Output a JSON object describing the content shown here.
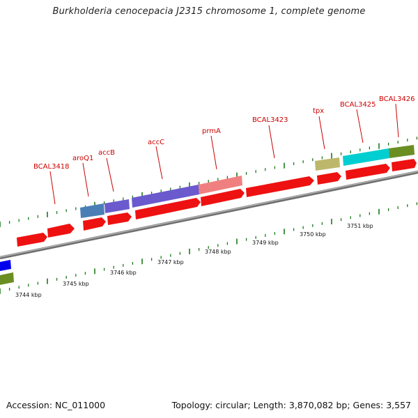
{
  "title": "Burkholderia cenocepacia J2315 chromosome 1, complete genome",
  "footer": {
    "accession": "Accession: NC_011000",
    "summary": "Topology: circular; Length: 3,870,082 bp; Genes: 3,557"
  },
  "colors": {
    "cds": "#ee1111",
    "backbone": "#8a8a8a",
    "ticks": "#1a7a1a",
    "label": "#cc0000"
  },
  "scale": {
    "unit": "kbp",
    "labels": [
      "3744 kbp",
      "3745 kbp",
      "3746 kbp",
      "3747 kbp",
      "3748 kbp",
      "3749 kbp",
      "3750 kbp",
      "3751 kbp"
    ]
  },
  "gene_labels": [
    "BCAL3418",
    "aroQ1",
    "accB",
    "accC",
    "prmA",
    "BCAL3423",
    "tpx",
    "BCAL3425",
    "BCAL3426"
  ],
  "features": [
    {
      "type": "gene",
      "color": "#0000ee"
    },
    {
      "type": "gene",
      "color": "#6b8e23"
    },
    {
      "type": "gene",
      "color": "#4a7fb5",
      "label": "aroQ1"
    },
    {
      "type": "gene",
      "color": "#6a5acd",
      "label": "accB"
    },
    {
      "type": "gene",
      "color": "#6a5acd",
      "label": "accC"
    },
    {
      "type": "gene",
      "color": "#f08080",
      "label": "prmA"
    },
    {
      "type": "gene",
      "color": "#bdb76b",
      "label": "tpx"
    },
    {
      "type": "gene",
      "color": "#00ced1",
      "label": "BCAL3425"
    },
    {
      "type": "gene",
      "color": "#6b8e23",
      "label": "BCAL3426"
    }
  ]
}
